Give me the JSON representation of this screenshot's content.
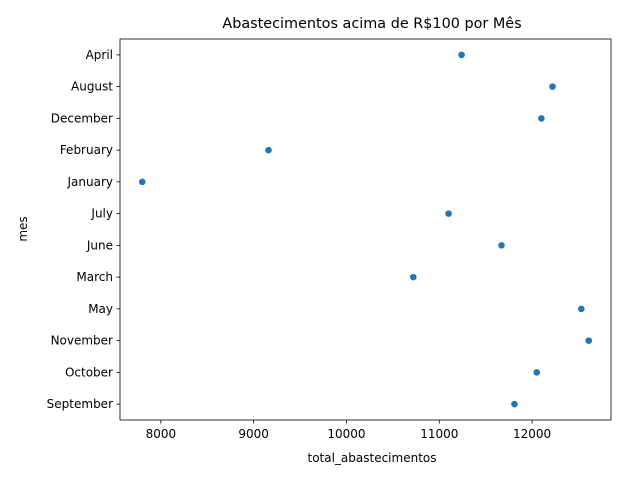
{
  "chart_data": {
    "type": "scatter",
    "title": "Abastecimentos acima de R$100 por Mês",
    "xlabel": "total_abastecimentos",
    "ylabel": "mes",
    "categories": [
      "April",
      "August",
      "December",
      "February",
      "January",
      "July",
      "June",
      "March",
      "May",
      "November",
      "October",
      "September"
    ],
    "values": [
      11240,
      12220,
      12100,
      9160,
      7800,
      11100,
      11670,
      10720,
      12530,
      12610,
      12050,
      11810
    ],
    "xlim": [
      7560,
      12850
    ],
    "xticks": [
      8000,
      9000,
      10000,
      11000,
      12000
    ],
    "grid": false,
    "color": "#1f77b4"
  }
}
